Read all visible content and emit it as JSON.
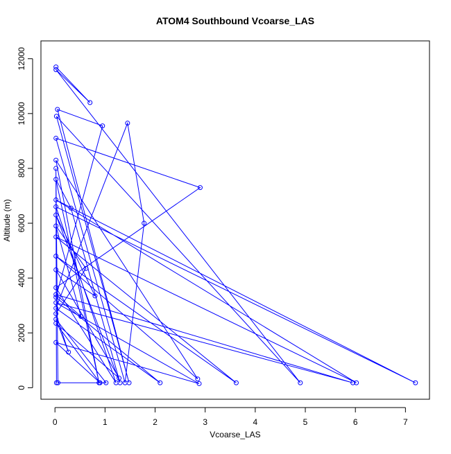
{
  "chart_data": {
    "type": "line",
    "title": "ATOM4 Southbound Vcoarse_LAS",
    "xlabel": "Vcoarse_LAS",
    "ylabel": "Altitude (m)",
    "xlim": [
      -0.28,
      7.48
    ],
    "ylim": [
      -420,
      12650
    ],
    "x_ticks": [
      0,
      1,
      2,
      3,
      4,
      5,
      6,
      7
    ],
    "y_ticks": [
      0,
      2000,
      4000,
      6000,
      8000,
      10000,
      12000
    ],
    "grid": false,
    "legend": "none",
    "series_color": "#0000ff",
    "marker": "open-circle",
    "points": [
      {
        "x": 0.02,
        "y": 11700
      },
      {
        "x": 0.7,
        "y": 10400
      },
      {
        "x": 0.02,
        "y": 11600
      },
      {
        "x": 4.9,
        "y": 180
      },
      {
        "x": 0.03,
        "y": 9900
      },
      {
        "x": 1.48,
        "y": 180
      },
      {
        "x": 0.05,
        "y": 10150
      },
      {
        "x": 0.95,
        "y": 9550
      },
      {
        "x": 0.02,
        "y": 3300
      },
      {
        "x": 2.1,
        "y": 180
      },
      {
        "x": 0.02,
        "y": 2900
      },
      {
        "x": 1.45,
        "y": 9650
      },
      {
        "x": 1.78,
        "y": 6000
      },
      {
        "x": 1.4,
        "y": 180
      },
      {
        "x": 0.02,
        "y": 9100
      },
      {
        "x": 2.9,
        "y": 7300
      },
      {
        "x": 0.02,
        "y": 3650
      },
      {
        "x": 1.22,
        "y": 180
      },
      {
        "x": 0.02,
        "y": 6600
      },
      {
        "x": 7.2,
        "y": 180
      },
      {
        "x": 0.02,
        "y": 6850
      },
      {
        "x": 6.02,
        "y": 180
      },
      {
        "x": 0.02,
        "y": 5500
      },
      {
        "x": 3.62,
        "y": 180
      },
      {
        "x": 0.02,
        "y": 4800
      },
      {
        "x": 2.85,
        "y": 320
      },
      {
        "x": 0.02,
        "y": 8300
      },
      {
        "x": 0.88,
        "y": 180
      },
      {
        "x": 0.02,
        "y": 7600
      },
      {
        "x": 0.32,
        "y": 6550
      },
      {
        "x": 1.3,
        "y": 180
      },
      {
        "x": 0.02,
        "y": 6300
      },
      {
        "x": 0.8,
        "y": 3350
      },
      {
        "x": 0.02,
        "y": 4300
      },
      {
        "x": 1.28,
        "y": 350
      },
      {
        "x": 0.02,
        "y": 2350
      },
      {
        "x": 0.9,
        "y": 180
      },
      {
        "x": 0.02,
        "y": 1650
      },
      {
        "x": 2.88,
        "y": 150
      },
      {
        "x": 0.02,
        "y": 3100
      },
      {
        "x": 5.95,
        "y": 180
      },
      {
        "x": 0.02,
        "y": 3400
      },
      {
        "x": 0.52,
        "y": 2600
      },
      {
        "x": 0.02,
        "y": 5900
      },
      {
        "x": 0.62,
        "y": 4350
      },
      {
        "x": 0.02,
        "y": 2700
      },
      {
        "x": 0.27,
        "y": 1300
      },
      {
        "x": 0.02,
        "y": 2500
      },
      {
        "x": 1.02,
        "y": 180
      },
      {
        "x": 0.06,
        "y": 180
      },
      {
        "x": 0.02,
        "y": 8000
      },
      {
        "x": 0.03,
        "y": 180
      }
    ]
  }
}
